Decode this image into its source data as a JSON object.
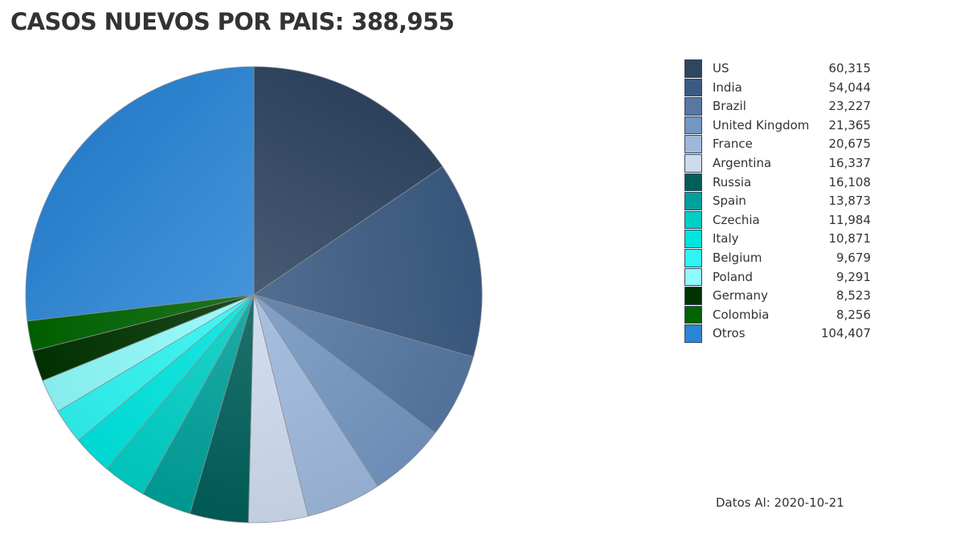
{
  "chart_data": {
    "type": "pie",
    "title": "CASOS NUEVOS POR PAIS: 388,955",
    "categories": [
      "US",
      "India",
      "Brazil",
      "United Kingdom",
      "France",
      "Argentina",
      "Russia",
      "Spain",
      "Czechia",
      "Italy",
      "Belgium",
      "Poland",
      "Germany",
      "Colombia",
      "Otros"
    ],
    "values": [
      60315,
      54044,
      23227,
      21365,
      20675,
      16337,
      16108,
      13873,
      11984,
      10871,
      9679,
      9291,
      8523,
      8256,
      104407
    ],
    "value_labels": [
      "60,315",
      "54,044",
      "23,227",
      "21,365",
      "20,675",
      "16,337",
      "16,108",
      "13,873",
      "11,984",
      "10,871",
      "9,679",
      "9,291",
      "8,523",
      "8,256",
      "104,407"
    ],
    "colors": [
      "#2f4561",
      "#3a5a82",
      "#5678a3",
      "#7496c2",
      "#9db8dc",
      "#cddbee",
      "#005f5a",
      "#00a19a",
      "#00cfc6",
      "#00e5de",
      "#2ff5f2",
      "#8ffbfa",
      "#013301",
      "#006400",
      "#2b85d6"
    ],
    "legend_placement": "right",
    "start_angle": "top",
    "direction": "clockwise"
  },
  "footnote": "Datos Al: 2020-10-21"
}
